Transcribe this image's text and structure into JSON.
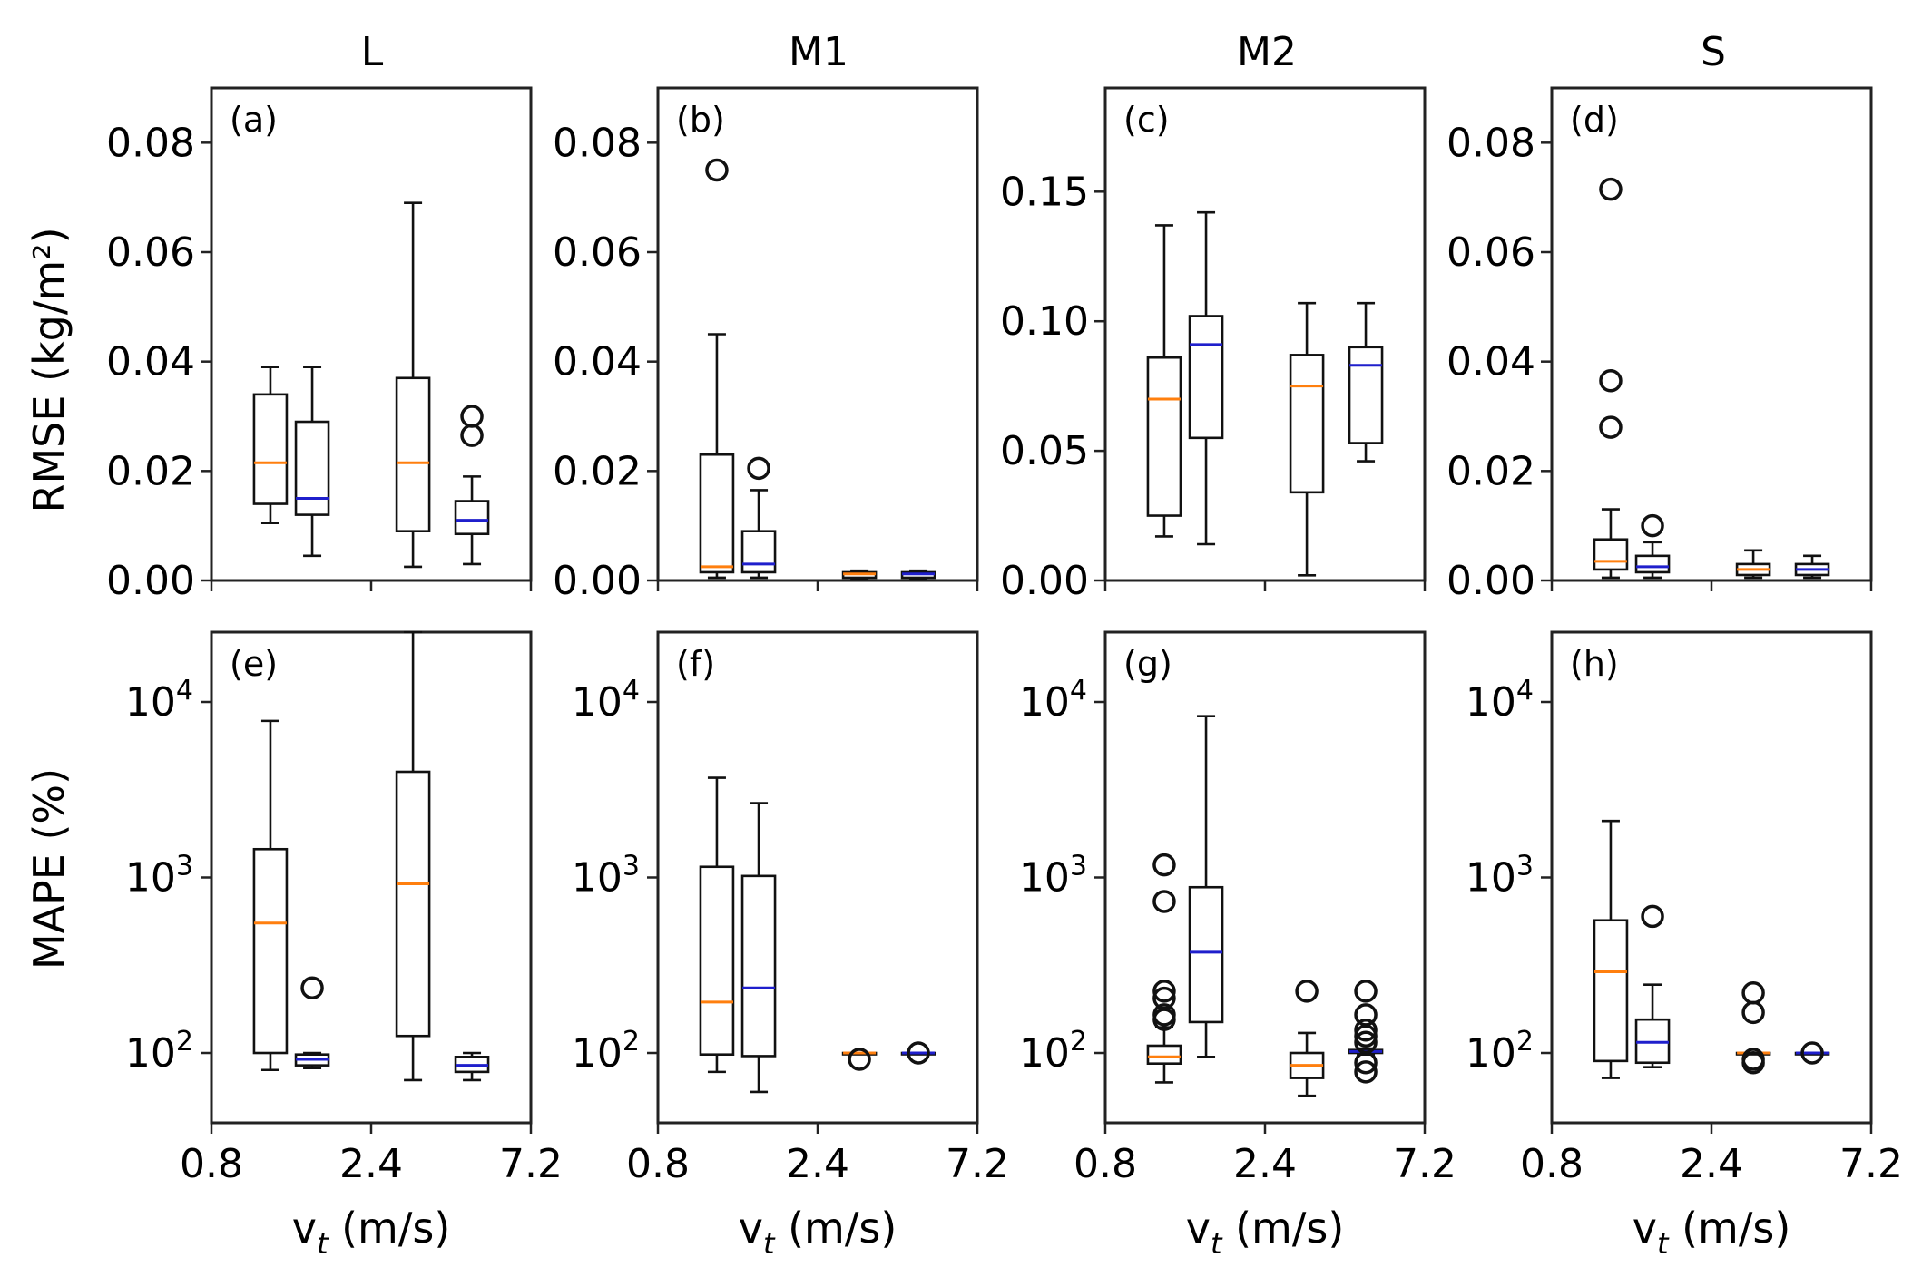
{
  "figure": {
    "columns": [
      "L",
      "M1",
      "M2",
      "S"
    ],
    "row_ylabels": [
      "RMSE (kg/m²)",
      "MAPE (%)"
    ],
    "xlabel": "v_t (m/s)"
  },
  "colors": {
    "median_a": "#ff7f0e",
    "median_b": "#1f1fcc",
    "stroke": "#111111"
  },
  "chart_data": [
    {
      "type": "box",
      "panel": "(a)",
      "column": "L",
      "row": "RMSE",
      "yscale": "linear",
      "ylim": [
        0,
        0.09
      ],
      "yticks": [
        0,
        0.02,
        0.04,
        0.06,
        0.08
      ],
      "ytick_labels": [
        "0.00",
        "0.02",
        "0.04",
        "0.06",
        "0.08"
      ],
      "xticks": [
        0.8,
        2.4,
        7.2
      ],
      "xtick_labels": [
        "0.8",
        "2.4",
        "7.2"
      ],
      "boxes": [
        {
          "x": 1.2,
          "whislo": 0.0105,
          "q1": 0.014,
          "med": 0.0215,
          "q3": 0.034,
          "whishi": 0.039,
          "fliers": [],
          "color": "a"
        },
        {
          "x": 1.6,
          "whislo": 0.0045,
          "q1": 0.012,
          "med": 0.015,
          "q3": 0.029,
          "whishi": 0.039,
          "fliers": [],
          "color": "b"
        },
        {
          "x": 3.2,
          "whislo": 0.0025,
          "q1": 0.009,
          "med": 0.0215,
          "q3": 0.037,
          "whishi": 0.069,
          "fliers": [],
          "color": "a"
        },
        {
          "x": 4.8,
          "whislo": 0.003,
          "q1": 0.0085,
          "med": 0.011,
          "q3": 0.0145,
          "whishi": 0.019,
          "fliers": [
            0.0265,
            0.03
          ],
          "color": "b"
        }
      ]
    },
    {
      "type": "box",
      "panel": "(b)",
      "column": "M1",
      "row": "RMSE",
      "yscale": "linear",
      "ylim": [
        0,
        0.09
      ],
      "yticks": [
        0,
        0.02,
        0.04,
        0.06,
        0.08
      ],
      "ytick_labels": [
        "0.00",
        "0.02",
        "0.04",
        "0.06",
        "0.08"
      ],
      "xticks": [
        0.8,
        2.4,
        7.2
      ],
      "xtick_labels": [
        "0.8",
        "2.4",
        "7.2"
      ],
      "boxes": [
        {
          "x": 1.2,
          "whislo": 0.0005,
          "q1": 0.0015,
          "med": 0.0025,
          "q3": 0.023,
          "whishi": 0.045,
          "fliers": [
            0.075
          ],
          "color": "a"
        },
        {
          "x": 1.6,
          "whislo": 0.0005,
          "q1": 0.0015,
          "med": 0.003,
          "q3": 0.009,
          "whishi": 0.0165,
          "fliers": [
            0.0205
          ],
          "color": "b"
        },
        {
          "x": 3.2,
          "whislo": 0.0002,
          "q1": 0.0005,
          "med": 0.0012,
          "q3": 0.0015,
          "whishi": 0.0018,
          "fliers": [],
          "color": "a"
        },
        {
          "x": 4.8,
          "whislo": 0.0002,
          "q1": 0.0005,
          "med": 0.0012,
          "q3": 0.0015,
          "whishi": 0.0018,
          "fliers": [],
          "color": "b"
        }
      ]
    },
    {
      "type": "box",
      "panel": "(c)",
      "column": "M2",
      "row": "RMSE",
      "yscale": "linear",
      "ylim": [
        0,
        0.19
      ],
      "yticks": [
        0,
        0.05,
        0.1,
        0.15
      ],
      "ytick_labels": [
        "0.00",
        "0.05",
        "0.10",
        "0.15"
      ],
      "xticks": [
        0.8,
        2.4,
        7.2
      ],
      "xtick_labels": [
        "0.8",
        "2.4",
        "7.2"
      ],
      "boxes": [
        {
          "x": 1.2,
          "whislo": 0.017,
          "q1": 0.025,
          "med": 0.07,
          "q3": 0.086,
          "whishi": 0.137,
          "fliers": [],
          "color": "a"
        },
        {
          "x": 1.6,
          "whislo": 0.014,
          "q1": 0.055,
          "med": 0.091,
          "q3": 0.102,
          "whishi": 0.142,
          "fliers": [],
          "color": "b"
        },
        {
          "x": 3.2,
          "whislo": 0.002,
          "q1": 0.034,
          "med": 0.075,
          "q3": 0.087,
          "whishi": 0.107,
          "fliers": [],
          "color": "a"
        },
        {
          "x": 4.8,
          "whislo": 0.046,
          "q1": 0.053,
          "med": 0.083,
          "q3": 0.09,
          "whishi": 0.107,
          "fliers": [],
          "color": "b"
        }
      ]
    },
    {
      "type": "box",
      "panel": "(d)",
      "column": "S",
      "row": "RMSE",
      "yscale": "linear",
      "ylim": [
        0,
        0.09
      ],
      "yticks": [
        0,
        0.02,
        0.04,
        0.06,
        0.08
      ],
      "ytick_labels": [
        "0.00",
        "0.02",
        "0.04",
        "0.06",
        "0.08"
      ],
      "xticks": [
        0.8,
        2.4,
        7.2
      ],
      "xtick_labels": [
        "0.8",
        "2.4",
        "7.2"
      ],
      "boxes": [
        {
          "x": 1.2,
          "whislo": 0.0005,
          "q1": 0.002,
          "med": 0.0035,
          "q3": 0.0075,
          "whishi": 0.013,
          "fliers": [
            0.028,
            0.0365,
            0.0715
          ],
          "color": "a"
        },
        {
          "x": 1.6,
          "whislo": 0.0005,
          "q1": 0.0015,
          "med": 0.0025,
          "q3": 0.0045,
          "whishi": 0.007,
          "fliers": [
            0.01
          ],
          "color": "b"
        },
        {
          "x": 3.2,
          "whislo": 0.0005,
          "q1": 0.001,
          "med": 0.002,
          "q3": 0.003,
          "whishi": 0.0055,
          "fliers": [],
          "color": "a"
        },
        {
          "x": 4.8,
          "whislo": 0.0005,
          "q1": 0.001,
          "med": 0.002,
          "q3": 0.003,
          "whishi": 0.0045,
          "fliers": [],
          "color": "b"
        }
      ]
    },
    {
      "type": "box",
      "panel": "(e)",
      "column": "L",
      "row": "MAPE",
      "yscale": "log",
      "ylim": [
        40,
        25000
      ],
      "yticks": [
        100,
        1000,
        10000
      ],
      "ytick_labels": [
        "10|2",
        "10|3",
        "10|4"
      ],
      "xticks": [
        0.8,
        2.4,
        7.2
      ],
      "xtick_labels": [
        "0.8",
        "2.4",
        "7.2"
      ],
      "boxes": [
        {
          "x": 1.2,
          "whislo": 80,
          "q1": 100,
          "med": 550,
          "q3": 1450,
          "whishi": 7800,
          "fliers": [],
          "color": "a"
        },
        {
          "x": 1.6,
          "whislo": 82,
          "q1": 85,
          "med": 92,
          "q3": 98,
          "whishi": 100,
          "fliers": [
            235
          ],
          "color": "b"
        },
        {
          "x": 3.2,
          "whislo": 70,
          "q1": 125,
          "med": 920,
          "q3": 4000,
          "whishi": 25000,
          "fliers": [],
          "color": "a"
        },
        {
          "x": 4.8,
          "whislo": 70,
          "q1": 78,
          "med": 85,
          "q3": 95,
          "whishi": 100,
          "fliers": [],
          "color": "b"
        }
      ]
    },
    {
      "type": "box",
      "panel": "(f)",
      "column": "M1",
      "row": "MAPE",
      "yscale": "log",
      "ylim": [
        40,
        25000
      ],
      "yticks": [
        100,
        1000,
        10000
      ],
      "ytick_labels": [
        "10|2",
        "10|3",
        "10|4"
      ],
      "xticks": [
        0.8,
        2.4,
        7.2
      ],
      "xtick_labels": [
        "0.8",
        "2.4",
        "7.2"
      ],
      "boxes": [
        {
          "x": 1.2,
          "whislo": 78,
          "q1": 98,
          "med": 195,
          "q3": 1150,
          "whishi": 3700,
          "fliers": [],
          "color": "a"
        },
        {
          "x": 1.6,
          "whislo": 60,
          "q1": 96,
          "med": 235,
          "q3": 1020,
          "whishi": 2650,
          "fliers": [],
          "color": "b"
        },
        {
          "x": 3.2,
          "whislo": 99,
          "q1": 99,
          "med": 100,
          "q3": 100,
          "whishi": 100,
          "fliers": [
            92
          ],
          "color": "a"
        },
        {
          "x": 4.8,
          "whislo": 100,
          "q1": 100,
          "med": 100,
          "q3": 100,
          "whishi": 100,
          "fliers": [
            100
          ],
          "color": "b"
        }
      ]
    },
    {
      "type": "box",
      "panel": "(g)",
      "column": "M2",
      "row": "MAPE",
      "yscale": "log",
      "ylim": [
        40,
        25000
      ],
      "yticks": [
        100,
        1000,
        10000
      ],
      "ytick_labels": [
        "10|2",
        "10|3",
        "10|4"
      ],
      "xticks": [
        0.8,
        2.4,
        7.2
      ],
      "xtick_labels": [
        "0.8",
        "2.4",
        "7.2"
      ],
      "boxes": [
        {
          "x": 1.2,
          "whislo": 68,
          "q1": 87,
          "med": 95,
          "q3": 110,
          "whishi": 140,
          "fliers": [
            155,
            165,
            205,
            225,
            730,
            1180
          ],
          "color": "a"
        },
        {
          "x": 1.6,
          "whislo": 95,
          "q1": 150,
          "med": 375,
          "q3": 880,
          "whishi": 8300,
          "fliers": [],
          "color": "b"
        },
        {
          "x": 3.2,
          "whislo": 57,
          "q1": 72,
          "med": 85,
          "q3": 100,
          "whishi": 130,
          "fliers": [
            225
          ],
          "color": "a"
        },
        {
          "x": 4.8,
          "whislo": 98,
          "q1": 100,
          "med": 102,
          "q3": 104,
          "whishi": 106,
          "fliers": [
            78,
            88,
            115,
            125,
            135,
            165,
            225
          ],
          "color": "b"
        }
      ]
    },
    {
      "type": "box",
      "panel": "(h)",
      "column": "S",
      "row": "MAPE",
      "yscale": "log",
      "ylim": [
        40,
        25000
      ],
      "yticks": [
        100,
        1000,
        10000
      ],
      "ytick_labels": [
        "10|2",
        "10|3",
        "10|4"
      ],
      "xticks": [
        0.8,
        2.4,
        7.2
      ],
      "xtick_labels": [
        "0.8",
        "2.4",
        "7.2"
      ],
      "boxes": [
        {
          "x": 1.2,
          "whislo": 72,
          "q1": 90,
          "med": 290,
          "q3": 570,
          "whishi": 2100,
          "fliers": [],
          "color": "a"
        },
        {
          "x": 1.6,
          "whislo": 83,
          "q1": 88,
          "med": 115,
          "q3": 155,
          "whishi": 245,
          "fliers": [
            600
          ],
          "color": "b"
        },
        {
          "x": 3.2,
          "whislo": 99,
          "q1": 99,
          "med": 100,
          "q3": 100,
          "whishi": 100,
          "fliers": [
            88,
            92,
            170,
            220
          ],
          "color": "a"
        },
        {
          "x": 4.8,
          "whislo": 100,
          "q1": 100,
          "med": 100,
          "q3": 100,
          "whishi": 100,
          "fliers": [
            100
          ],
          "color": "b"
        }
      ]
    }
  ]
}
